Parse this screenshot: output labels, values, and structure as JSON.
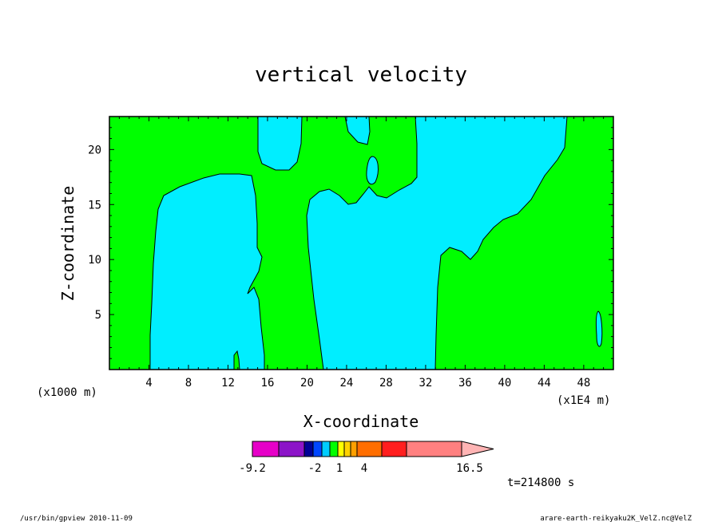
{
  "chart_data": {
    "type": "contour",
    "title": "vertical velocity",
    "xlabel": "X-coordinate",
    "ylabel": "Z-coordinate",
    "x_unit_left": "(x1000 m)",
    "x_unit_right": "(x1E4 m)",
    "xlim": [
      0,
      51
    ],
    "ylim": [
      0,
      23
    ],
    "x_ticks": [
      4,
      8,
      12,
      16,
      20,
      24,
      28,
      32,
      36,
      40,
      44,
      48
    ],
    "y_ticks": [
      5,
      10,
      15,
      20
    ],
    "regions": [
      {
        "level": "positive",
        "color": "#00ff00"
      },
      {
        "level": "negative",
        "color": "#00eeff"
      }
    ],
    "colorbar": {
      "colors": [
        "#e600c8",
        "#8c14c8",
        "#000096",
        "#0046ff",
        "#00ccff",
        "#00ff00",
        "#ffff00",
        "#ffd200",
        "#ffa000",
        "#ff6e00",
        "#ff1e1e",
        "#ff8080"
      ],
      "labels": [
        "-9.2",
        "-2",
        "1",
        "4",
        "16.5"
      ],
      "min": -9.2,
      "max": 16.5
    },
    "time_label": "t=214800 s"
  },
  "footer": {
    "left": "/usr/bin/gpview   2010-11-09",
    "right": "arare-earth-reikyaku2K_VelZ.nc@VelZ"
  }
}
